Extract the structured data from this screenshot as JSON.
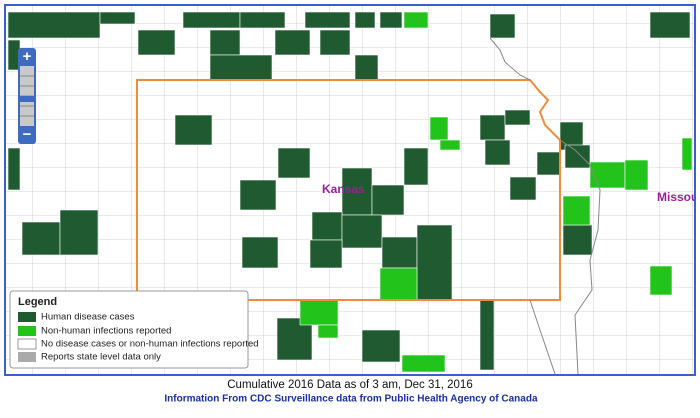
{
  "map": {
    "labels": [
      "Kansas",
      "Missouri"
    ]
  },
  "zoom": {
    "in": "+",
    "out": "−"
  },
  "legend": {
    "title": "Legend",
    "items": [
      "Human disease cases",
      "Non-human infections reported",
      "No disease cases or non-human infections reported",
      "Reports state level data only"
    ]
  },
  "footer": {
    "caption": "Cumulative 2016 Data as of 3 am, Dec 31, 2016",
    "links": [
      "Information From CDC",
      "Surveillance data from Public Health Agency of Canada"
    ]
  }
}
